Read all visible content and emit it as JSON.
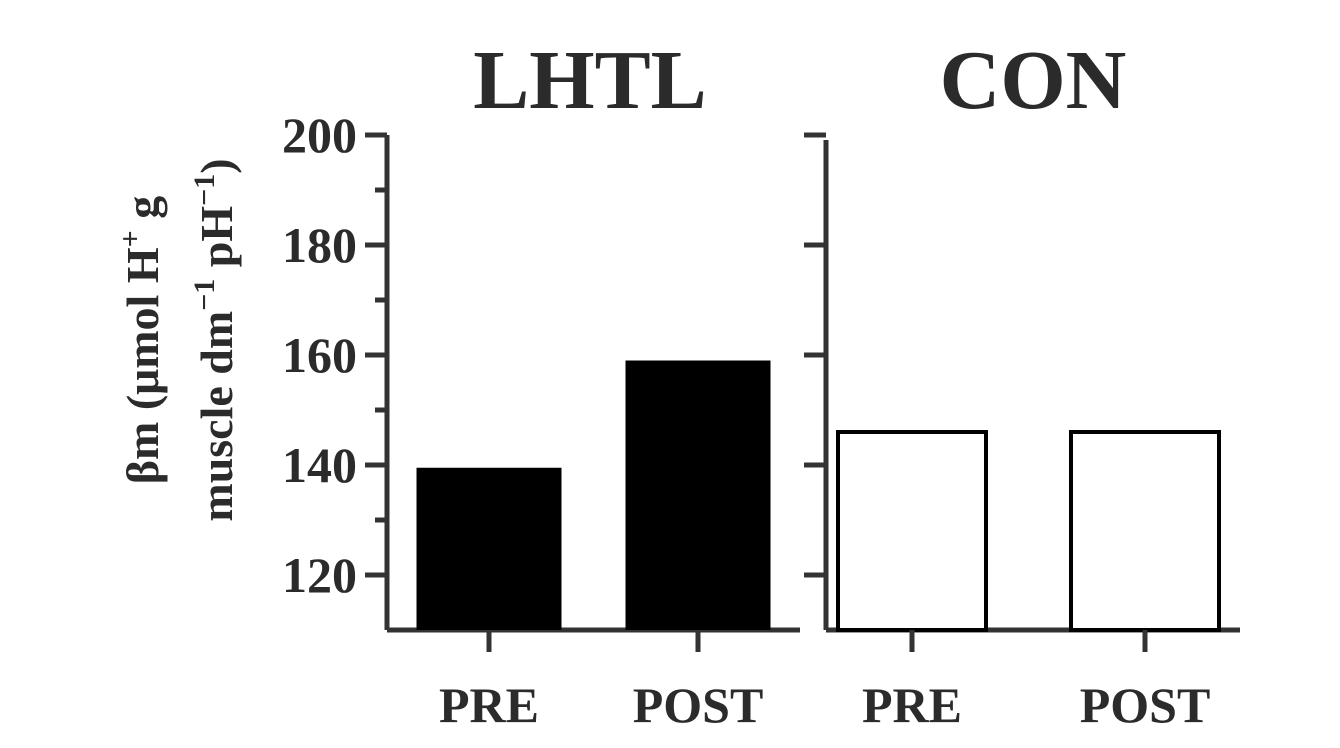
{
  "chart_data": {
    "type": "bar",
    "ylabel_line1": "βm (μmol H",
    "ylabel_sup1": "+",
    "ylabel_line1_end": " g",
    "ylabel_line2": "muscle dm",
    "ylabel_sup2": "−1",
    "ylabel_line2_mid": " pH",
    "ylabel_sup3": "−1",
    "ylabel_close": ")",
    "ylim": [
      110,
      200
    ],
    "yticks": [
      120,
      140,
      160,
      180,
      200
    ],
    "panels": [
      {
        "title": "LHTL",
        "categories": [
          "PRE",
          "POST"
        ],
        "values": [
          139.5,
          159
        ],
        "fill": "#000000",
        "show_tick_labels": true
      },
      {
        "title": "CON",
        "categories": [
          "PRE",
          "POST"
        ],
        "values": [
          146,
          146
        ],
        "fill": "#ffffff",
        "show_tick_labels": false
      }
    ]
  }
}
